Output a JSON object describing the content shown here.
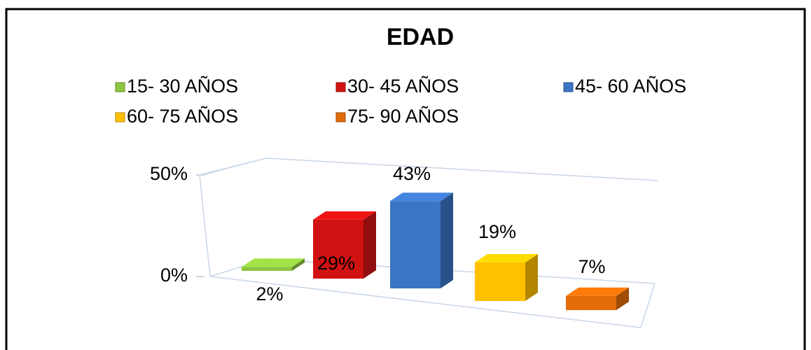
{
  "chart_data": {
    "type": "bar",
    "title": "EDAD",
    "series": [
      {
        "name": "15- 30 AÑOS",
        "color": "#8dc63f",
        "values": [
          2
        ],
        "value_labels": [
          "2%"
        ]
      },
      {
        "name": "30- 45 AÑOS",
        "color": "#d01212",
        "values": [
          29
        ],
        "value_labels": [
          "29%"
        ]
      },
      {
        "name": "45- 60 AÑOS",
        "color": "#3a74c4",
        "values": [
          43
        ],
        "value_labels": [
          "43%"
        ]
      },
      {
        "name": "60- 75 AÑOS",
        "color": "#ffc000",
        "values": [
          19
        ],
        "value_labels": [
          "19%"
        ]
      },
      {
        "name": "75- 90 AÑOS",
        "color": "#e36c0a",
        "values": [
          7
        ],
        "value_labels": [
          "7%"
        ]
      }
    ],
    "ylim": [
      0,
      50
    ],
    "yticks": [
      {
        "value": 0,
        "label": "0%"
      },
      {
        "value": 50,
        "label": "50%"
      }
    ],
    "grid": true
  }
}
